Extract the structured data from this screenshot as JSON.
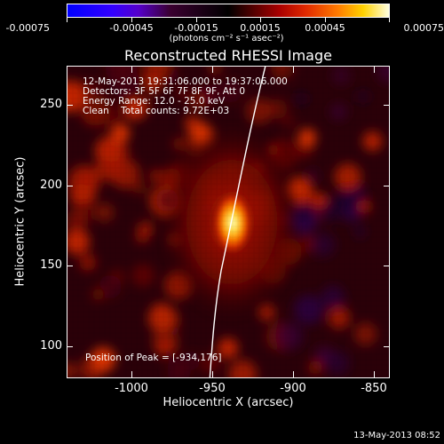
{
  "colorbar": {
    "ticks": [
      "-0.00075",
      "-0.00045",
      "-0.00015",
      "0.00015",
      "0.00045",
      "0.00075"
    ],
    "units": "(photons cm⁻² s⁻¹ asec⁻²)"
  },
  "title": "Reconstructed RHESSI Image",
  "info": {
    "time_range": "12-May-2013 19:31:06.000 to 19:37:06.000",
    "detectors": "Detectors: 3F 5F 6F 7F 8F 9F, Att 0",
    "energy": "Energy Range: 12.0 - 25.0 keV",
    "clean": "Clean    Total counts: 9.72E+03"
  },
  "peak": "Position of Peak = [-934,176]",
  "axes": {
    "x_title": "Heliocentric X (arcsec)",
    "y_title": "Heliocentric Y (arcsec)",
    "x_ticks": [
      "-1000",
      "-950",
      "-900",
      "-850"
    ],
    "y_ticks": [
      "250",
      "200",
      "150",
      "100"
    ]
  },
  "footer": "13-May-2013 08:52",
  "colors": {
    "background": "#000000",
    "text": "#ffffff",
    "limb": "#ffffff"
  }
}
